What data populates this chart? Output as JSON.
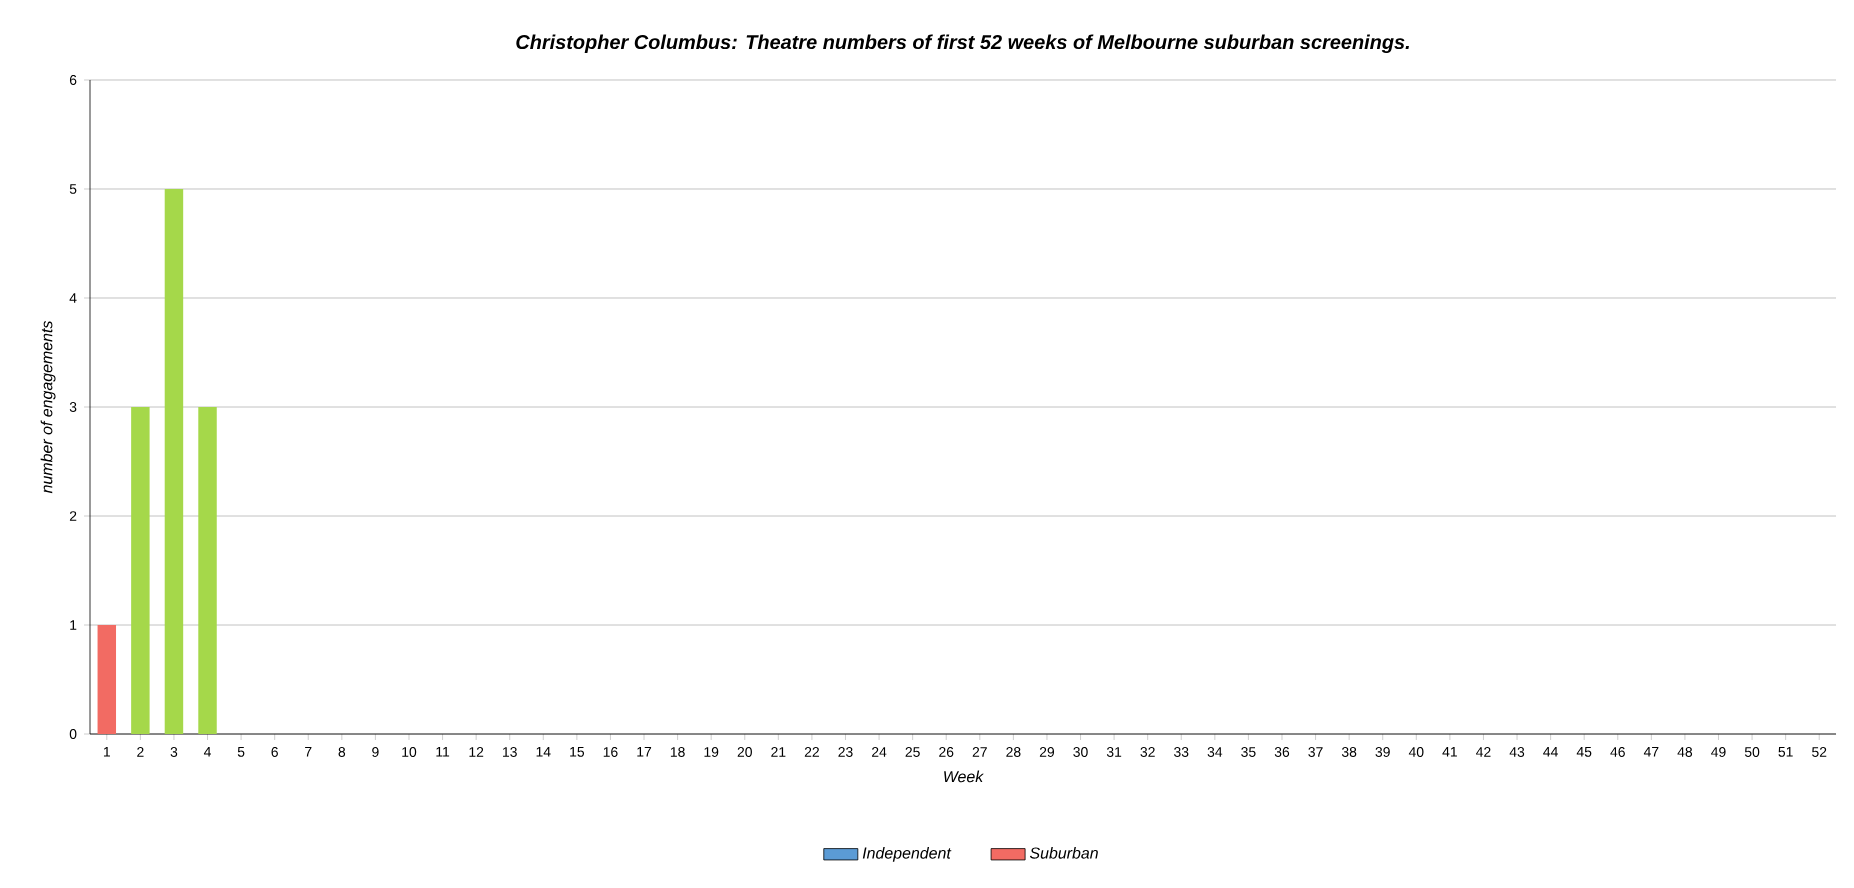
{
  "chart_data": {
    "type": "bar",
    "title": "Christopher Columbus: Theatre numbers of first 52 weeks of Melbourne suburban screenings.",
    "xlabel": "Week",
    "ylabel": "number of engagements",
    "categories": [
      "1",
      "2",
      "3",
      "4",
      "5",
      "6",
      "7",
      "8",
      "9",
      "10",
      "11",
      "12",
      "13",
      "14",
      "15",
      "16",
      "17",
      "18",
      "19",
      "20",
      "21",
      "22",
      "23",
      "24",
      "25",
      "26",
      "27",
      "28",
      "29",
      "30",
      "31",
      "32",
      "33",
      "34",
      "35",
      "36",
      "37",
      "38",
      "39",
      "40",
      "41",
      "42",
      "43",
      "44",
      "45",
      "46",
      "47",
      "48",
      "49",
      "50",
      "51",
      "52"
    ],
    "series": [
      {
        "name": "Independent",
        "color": "#5b9bd5",
        "values": [
          0,
          0,
          0,
          0,
          0,
          0,
          0,
          0,
          0,
          0,
          0,
          0,
          0,
          0,
          0,
          0,
          0,
          0,
          0,
          0,
          0,
          0,
          0,
          0,
          0,
          0,
          0,
          0,
          0,
          0,
          0,
          0,
          0,
          0,
          0,
          0,
          0,
          0,
          0,
          0,
          0,
          0,
          0,
          0,
          0,
          0,
          0,
          0,
          0,
          0,
          0,
          0
        ]
      },
      {
        "name": "Suburban",
        "color": "#f26b63",
        "values": [
          1,
          0,
          0,
          0,
          0,
          0,
          0,
          0,
          0,
          0,
          0,
          0,
          0,
          0,
          0,
          0,
          0,
          0,
          0,
          0,
          0,
          0,
          0,
          0,
          0,
          0,
          0,
          0,
          0,
          0,
          0,
          0,
          0,
          0,
          0,
          0,
          0,
          0,
          0,
          0,
          0,
          0,
          0,
          0,
          0,
          0,
          0,
          0,
          0,
          0,
          0,
          0
        ]
      },
      {
        "color": "#a5d84a",
        "values": [
          0,
          3,
          5,
          3,
          0,
          0,
          0,
          0,
          0,
          0,
          0,
          0,
          0,
          0,
          0,
          0,
          0,
          0,
          0,
          0,
          0,
          0,
          0,
          0,
          0,
          0,
          0,
          0,
          0,
          0,
          0,
          0,
          0,
          0,
          0,
          0,
          0,
          0,
          0,
          0,
          0,
          0,
          0,
          0,
          0,
          0,
          0,
          0,
          0,
          0,
          0,
          0
        ]
      }
    ],
    "stacked": true,
    "ylim": [
      0,
      6
    ],
    "yticks": [
      0,
      1,
      2,
      3,
      4,
      5,
      6
    ],
    "grid": "y",
    "legend": "bottom"
  }
}
